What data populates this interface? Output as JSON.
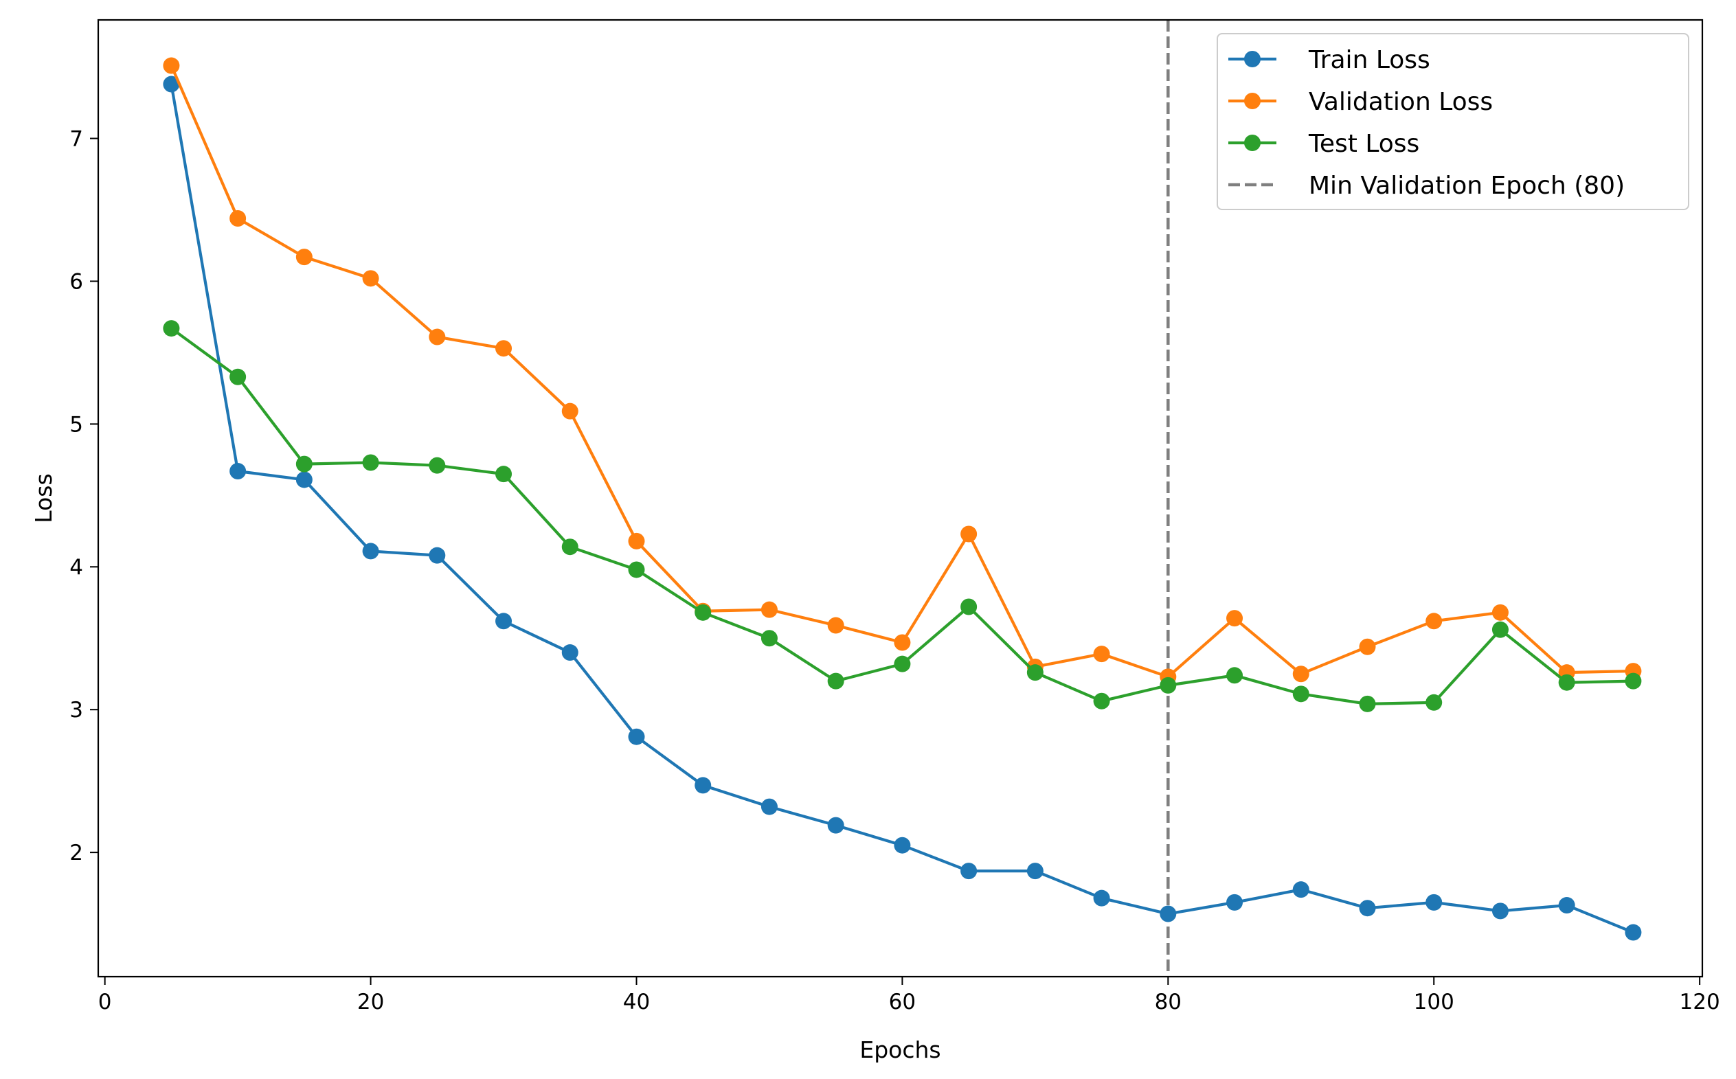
{
  "chart_data": {
    "type": "line",
    "title": "",
    "xlabel": "Epochs",
    "ylabel": "Loss",
    "xlim": [
      -0.5,
      120.2
    ],
    "ylim": [
      1.13,
      7.83
    ],
    "x_ticks": [
      0,
      20,
      40,
      60,
      80,
      100,
      120
    ],
    "y_ticks": [
      2,
      3,
      4,
      5,
      6,
      7
    ],
    "grid": false,
    "legend_position": "top-right",
    "x": [
      5,
      10,
      15,
      20,
      25,
      30,
      35,
      40,
      45,
      50,
      55,
      60,
      65,
      70,
      75,
      80,
      85,
      90,
      95,
      100,
      105,
      110,
      115
    ],
    "series": [
      {
        "name": "Train Loss",
        "color": "#1f77b4",
        "values": [
          7.38,
          4.67,
          4.61,
          4.11,
          4.08,
          3.62,
          3.4,
          2.81,
          2.47,
          2.32,
          2.19,
          2.05,
          1.87,
          1.87,
          1.68,
          1.57,
          1.65,
          1.74,
          1.61,
          1.65,
          1.59,
          1.63,
          1.44
        ]
      },
      {
        "name": "Validation Loss",
        "color": "#ff7f0e",
        "values": [
          7.51,
          6.44,
          6.17,
          6.02,
          5.61,
          5.53,
          5.09,
          4.18,
          3.69,
          3.7,
          3.59,
          3.47,
          4.23,
          3.3,
          3.39,
          3.23,
          3.64,
          3.25,
          3.44,
          3.62,
          3.68,
          3.26,
          3.27
        ]
      },
      {
        "name": "Test Loss",
        "color": "#2ca02c",
        "values": [
          5.67,
          5.33,
          4.72,
          4.73,
          4.71,
          4.65,
          4.14,
          3.98,
          3.68,
          3.5,
          3.2,
          3.32,
          3.72,
          3.26,
          3.06,
          3.17,
          3.24,
          3.11,
          3.04,
          3.05,
          3.56,
          3.19,
          3.2
        ]
      }
    ],
    "reference_line": {
      "name": "Min Validation Epoch (80)",
      "x": 80,
      "color": "#7f7f7f",
      "style": "dashed"
    }
  }
}
